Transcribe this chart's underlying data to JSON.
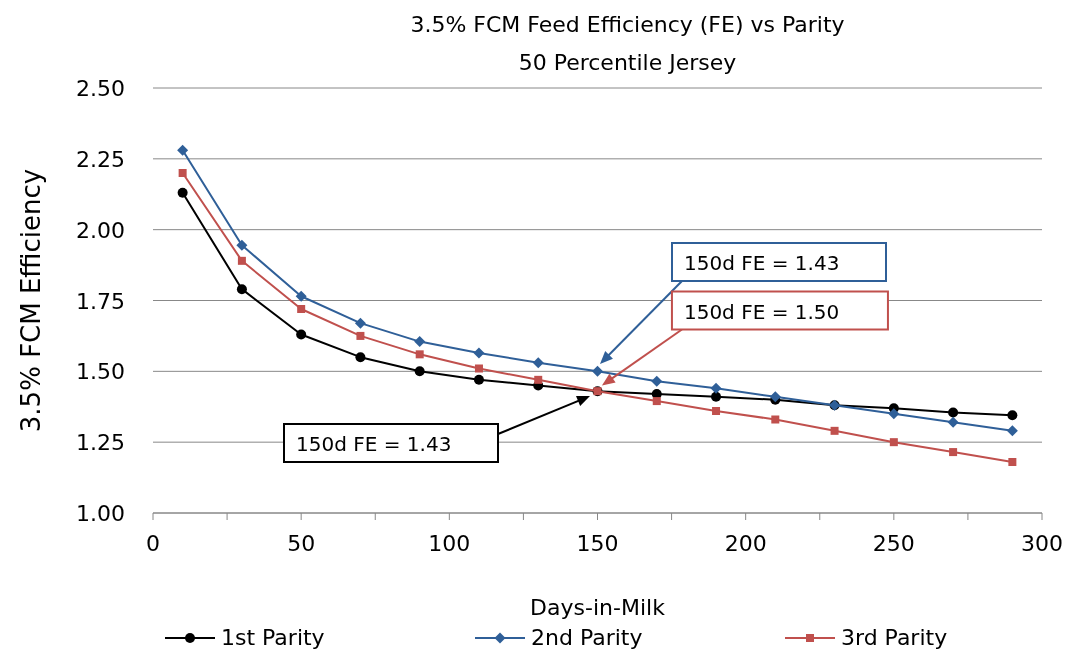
{
  "chart_data": {
    "type": "line",
    "title": "3.5% FCM Feed Efficiency (FE) vs Parity",
    "subtitle": "50 Percentile Jersey",
    "xlabel": "Days-in-Milk",
    "ylabel": "3.5% FCM Efficiency",
    "x": [
      10,
      30,
      50,
      70,
      90,
      110,
      130,
      150,
      170,
      190,
      210,
      230,
      250,
      270,
      290
    ],
    "series": [
      {
        "name": "1st Parity",
        "color": "#000000",
        "marker": "circle",
        "values": [
          2.13,
          1.79,
          1.63,
          1.55,
          1.5,
          1.47,
          1.45,
          1.43,
          1.42,
          1.41,
          1.4,
          1.38,
          1.37,
          1.355,
          1.345
        ]
      },
      {
        "name": "2nd Parity",
        "color": "#2f5f98",
        "marker": "diamond",
        "values": [
          2.28,
          1.945,
          1.765,
          1.67,
          1.605,
          1.565,
          1.53,
          1.5,
          1.465,
          1.44,
          1.41,
          1.38,
          1.35,
          1.32,
          1.29
        ]
      },
      {
        "name": "3rd Parity",
        "color": "#c0504d",
        "marker": "square",
        "values": [
          2.2,
          1.89,
          1.72,
          1.625,
          1.56,
          1.51,
          1.47,
          1.43,
          1.395,
          1.36,
          1.33,
          1.29,
          1.25,
          1.215,
          1.18
        ]
      }
    ],
    "xlim": [
      0,
      300
    ],
    "xticks": [
      0,
      {
        "value": 25,
        "label": null
      },
      50,
      {
        "value": 75,
        "label": null
      },
      100,
      {
        "value": 125,
        "label": null
      },
      150,
      {
        "value": 175,
        "label": null
      },
      200,
      {
        "value": 225,
        "label": null
      },
      250,
      {
        "value": 275,
        "label": null
      },
      300
    ],
    "ylim": [
      1.0,
      2.5
    ],
    "yticks": [
      {
        "value": 1.0,
        "label": "1.00"
      },
      {
        "value": 1.25,
        "label": "1.25"
      },
      {
        "value": 1.5,
        "label": "1.50"
      },
      {
        "value": 1.75,
        "label": "1.75"
      },
      {
        "value": 2.0,
        "label": "2.00"
      },
      {
        "value": 2.25,
        "label": "2.25"
      },
      {
        "value": 2.5,
        "label": "2.50"
      }
    ],
    "grid": "y",
    "legend": "bottom",
    "annotations": [
      "150d FE = 1.43",
      {
        "text": "150d FE = 1.50",
        "x": 151.5,
        "y": 1.45
      },
      "150d FE = 1.43"
    ]
  }
}
